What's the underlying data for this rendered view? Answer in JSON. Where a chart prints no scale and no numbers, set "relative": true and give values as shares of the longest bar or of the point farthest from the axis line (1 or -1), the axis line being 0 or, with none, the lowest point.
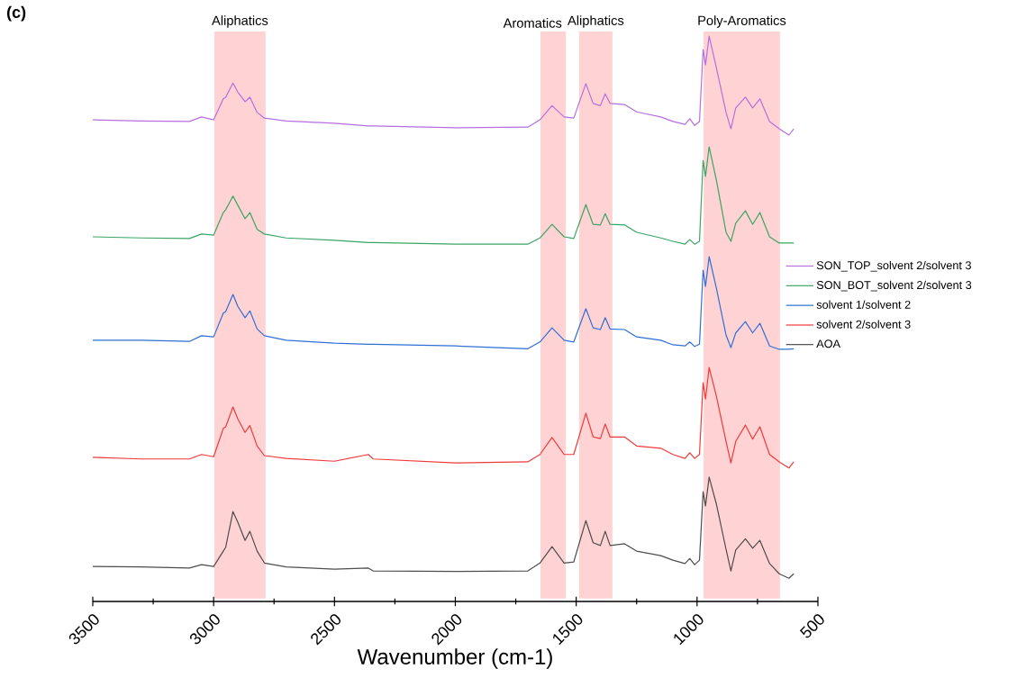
{
  "chart_data": {
    "type": "line",
    "relative": true,
    "title": "(c)",
    "xlabel": "Wavenumber (cm-1)",
    "x": [
      3500,
      3300,
      3100,
      3050,
      3000,
      2960,
      2950,
      2920,
      2900,
      2870,
      2850,
      2820,
      2790,
      2700,
      2500,
      2360,
      2340,
      2000,
      1700,
      1650,
      1600,
      1550,
      1510,
      1460,
      1430,
      1400,
      1380,
      1360,
      1300,
      1250,
      1150,
      1100,
      1050,
      1030,
      1010,
      990,
      975,
      965,
      950,
      920,
      880,
      860,
      840,
      800,
      770,
      740,
      700,
      660,
      620,
      600
    ],
    "xlim": [
      3500,
      500
    ],
    "xticks": [
      3500,
      3000,
      2500,
      2000,
      1500,
      1000,
      500
    ],
    "legend": "right",
    "line_style": "solid",
    "series": [
      {
        "name": "SON_TOP_solvent 2/solvent 3",
        "color": "#b56fe0",
        "values": [
          0.852,
          0.85,
          0.849,
          0.857,
          0.852,
          0.889,
          0.892,
          0.917,
          0.901,
          0.884,
          0.892,
          0.865,
          0.855,
          0.85,
          0.846,
          0.841,
          0.841,
          0.838,
          0.839,
          0.852,
          0.877,
          0.857,
          0.855,
          0.916,
          0.881,
          0.877,
          0.898,
          0.881,
          0.879,
          0.866,
          0.857,
          0.849,
          0.844,
          0.854,
          0.842,
          0.849,
          0.976,
          0.949,
          1.0,
          0.944,
          0.865,
          0.836,
          0.873,
          0.892,
          0.873,
          0.889,
          0.849,
          0.836,
          0.825,
          0.836
        ]
      },
      {
        "name": "SON_BOT_solvent 2/solvent 3",
        "color": "#3aa564",
        "values": [
          0.645,
          0.643,
          0.642,
          0.65,
          0.648,
          0.688,
          0.693,
          0.717,
          0.701,
          0.677,
          0.688,
          0.658,
          0.65,
          0.643,
          0.639,
          0.635,
          0.635,
          0.632,
          0.632,
          0.643,
          0.667,
          0.645,
          0.642,
          0.702,
          0.667,
          0.666,
          0.686,
          0.667,
          0.666,
          0.653,
          0.643,
          0.637,
          0.632,
          0.64,
          0.632,
          0.637,
          0.78,
          0.752,
          0.804,
          0.745,
          0.653,
          0.637,
          0.669,
          0.691,
          0.667,
          0.688,
          0.645,
          0.634,
          0.634,
          0.634
        ]
      },
      {
        "name": "solvent 1/solvent 2",
        "color": "#2f6fd6",
        "values": [
          0.462,
          0.462,
          0.46,
          0.47,
          0.468,
          0.51,
          0.513,
          0.543,
          0.522,
          0.502,
          0.514,
          0.482,
          0.47,
          0.462,
          0.457,
          0.455,
          0.455,
          0.452,
          0.447,
          0.459,
          0.484,
          0.462,
          0.459,
          0.518,
          0.484,
          0.481,
          0.502,
          0.482,
          0.481,
          0.468,
          0.462,
          0.454,
          0.452,
          0.459,
          0.451,
          0.455,
          0.586,
          0.557,
          0.61,
          0.554,
          0.471,
          0.449,
          0.475,
          0.495,
          0.475,
          0.492,
          0.452,
          0.446,
          0.446,
          0.447
        ]
      },
      {
        "name": "solvent 2/solvent 3",
        "color": "#f03a3a",
        "values": [
          0.255,
          0.252,
          0.252,
          0.26,
          0.256,
          0.306,
          0.309,
          0.344,
          0.323,
          0.299,
          0.311,
          0.275,
          0.258,
          0.253,
          0.248,
          0.26,
          0.252,
          0.245,
          0.247,
          0.26,
          0.29,
          0.26,
          0.26,
          0.333,
          0.291,
          0.288,
          0.314,
          0.291,
          0.291,
          0.275,
          0.271,
          0.26,
          0.253,
          0.263,
          0.253,
          0.26,
          0.387,
          0.358,
          0.414,
          0.363,
          0.283,
          0.245,
          0.283,
          0.312,
          0.287,
          0.309,
          0.26,
          0.247,
          0.236,
          0.247
        ]
      },
      {
        "name": "AOA",
        "color": "#4d4d4d",
        "values": [
          0.062,
          0.061,
          0.059,
          0.065,
          0.062,
          0.089,
          0.096,
          0.159,
          0.14,
          0.108,
          0.124,
          0.089,
          0.068,
          0.061,
          0.057,
          0.059,
          0.054,
          0.053,
          0.054,
          0.068,
          0.097,
          0.068,
          0.07,
          0.143,
          0.104,
          0.099,
          0.124,
          0.099,
          0.102,
          0.089,
          0.081,
          0.073,
          0.067,
          0.076,
          0.065,
          0.073,
          0.194,
          0.169,
          0.22,
          0.172,
          0.092,
          0.054,
          0.091,
          0.111,
          0.094,
          0.108,
          0.067,
          0.049,
          0.041,
          0.049
        ]
      }
    ],
    "bands": [
      {
        "axis": "x",
        "from": 2997,
        "to": 2785,
        "label": "Aliphatics",
        "color": "#ffd3d3"
      },
      {
        "axis": "x",
        "from": 1648,
        "to": 1543,
        "label": "Aromatics",
        "color": "#ffd3d3"
      },
      {
        "axis": "x",
        "from": 1488,
        "to": 1350,
        "label": "Aliphatics",
        "color": "#ffd3d3"
      },
      {
        "axis": "x",
        "from": 973,
        "to": 657,
        "label": "Poly-Aromatics",
        "color": "#ffd3d3"
      }
    ]
  }
}
